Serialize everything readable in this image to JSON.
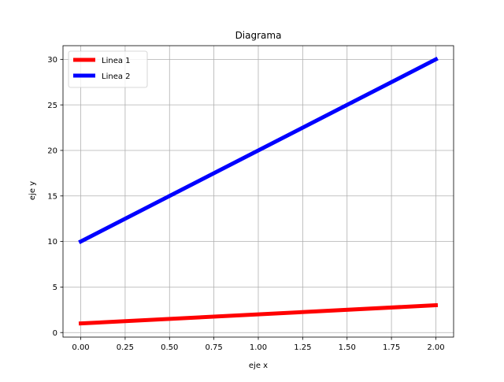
{
  "chart_data": {
    "type": "line",
    "title": "Diagrama",
    "xlabel": "eje x",
    "ylabel": "eje y",
    "x": [
      0,
      2
    ],
    "series": [
      {
        "name": "Linea 1",
        "values": [
          1,
          3
        ],
        "color": "#ff0000"
      },
      {
        "name": "Linea 2",
        "values": [
          10,
          30
        ],
        "color": "#0000ff"
      }
    ],
    "xlim": [
      -0.1,
      2.1
    ],
    "ylim": [
      -0.5,
      31.5
    ],
    "xticks": [
      0,
      0.25,
      0.5,
      0.75,
      1,
      1.25,
      1.5,
      1.75,
      2
    ],
    "xtick_labels": [
      "0.00",
      "0.25",
      "0.50",
      "0.75",
      "1.00",
      "1.25",
      "1.50",
      "1.75",
      "2.00"
    ],
    "yticks": [
      0,
      5,
      10,
      15,
      20,
      25,
      30
    ],
    "ytick_labels": [
      "0",
      "5",
      "10",
      "15",
      "20",
      "25",
      "30"
    ],
    "grid": true,
    "legend_position": "top-left"
  }
}
